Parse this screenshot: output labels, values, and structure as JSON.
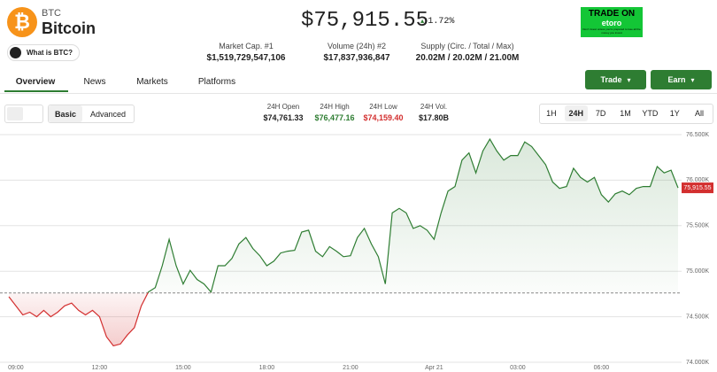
{
  "header": {
    "symbol": "BTC",
    "name": "Bitcoin",
    "what_is": "What is BTC?",
    "price": "$75,915.55",
    "change": "1.72%"
  },
  "stats": [
    {
      "label": "Market Cap. #1",
      "value": "$1,519,729,547,106"
    },
    {
      "label": "Volume (24h) #2",
      "value": "$17,837,936,847"
    },
    {
      "label": "Supply (Circ. / Total / Max)",
      "value": "20.02M / 20.02M / 21.00M"
    }
  ],
  "ad": {
    "title": "TRADE ON",
    "brand": "etoro",
    "disclaimer": "Don't invest unless you're prepared to lose all the money you invest"
  },
  "tabs": [
    "Overview",
    "News",
    "Markets",
    "Platforms"
  ],
  "buttons": [
    "Trade",
    "Earn"
  ],
  "modes": [
    "Basic",
    "Advanced"
  ],
  "day_stats": [
    {
      "label": "24H Open",
      "value": "$74,761.33"
    },
    {
      "label": "24H High",
      "value": "$76,477.16"
    },
    {
      "label": "24H Low",
      "value": "$74,159.40"
    },
    {
      "label": "24H Vol.",
      "value": "$17.80B"
    }
  ],
  "ranges": [
    "1H",
    "24H",
    "7D",
    "1M",
    "YTD",
    "1Y",
    "All"
  ],
  "chart_data": {
    "type": "line",
    "categories": [
      null,
      "09:00",
      null,
      null,
      null,
      null,
      null,
      null,
      null,
      null,
      null,
      null,
      null,
      "12:00",
      null,
      null,
      null,
      null,
      null,
      null,
      null,
      null,
      null,
      null,
      null,
      "15:00",
      null,
      null,
      null,
      null,
      null,
      null,
      null,
      null,
      null,
      null,
      null,
      "18:00",
      null,
      null,
      null,
      null,
      null,
      null,
      null,
      null,
      null,
      null,
      null,
      "21:00",
      null,
      null,
      null,
      null,
      null,
      null,
      null,
      null,
      null,
      null,
      null,
      "Apr 21",
      null,
      null,
      null,
      null,
      null,
      null,
      null,
      null,
      null,
      null,
      null,
      "03:00",
      null,
      null,
      null,
      null,
      null,
      null,
      null,
      null,
      null,
      null,
      null,
      "06:00",
      null,
      null,
      null,
      null,
      null,
      null,
      null,
      null,
      null,
      null,
      null
    ],
    "values": [
      74720,
      74620,
      74520,
      74550,
      74500,
      74570,
      74500,
      74550,
      74620,
      74650,
      74570,
      74520,
      74570,
      74500,
      74280,
      74180,
      74200,
      74300,
      74380,
      74620,
      74770,
      74820,
      75060,
      75350,
      75060,
      74860,
      75010,
      74910,
      74860,
      74770,
      75060,
      75060,
      75140,
      75300,
      75370,
      75250,
      75170,
      75060,
      75110,
      75200,
      75220,
      75230,
      75430,
      75450,
      75220,
      75160,
      75270,
      75220,
      75160,
      75170,
      75370,
      75470,
      75300,
      75160,
      74860,
      75640,
      75690,
      75640,
      75470,
      75500,
      75450,
      75350,
      75640,
      75880,
      75930,
      76220,
      76300,
      76080,
      76320,
      76450,
      76320,
      76220,
      76270,
      76270,
      76420,
      76370,
      76270,
      76170,
      75980,
      75910,
      75930,
      76130,
      76030,
      75980,
      76030,
      75840,
      75760,
      75850,
      75880,
      75840,
      75910,
      75930,
      75930,
      76150,
      76080,
      76110,
      75915.55
    ],
    "baseline": 74761.33,
    "last": {
      "value": 75915.55,
      "label": "75,915.55"
    },
    "up_color": "#2e7d32",
    "down_color": "#d32f2f",
    "ylim": [
      74000,
      76500
    ],
    "yticks": [
      {
        "value": 74000,
        "label": "74.000K"
      },
      {
        "value": 74500,
        "label": "74.500K"
      },
      {
        "value": 75000,
        "label": "75.000K"
      },
      {
        "value": 75500,
        "label": "75.500K"
      },
      {
        "value": 76000,
        "label": "76.000K"
      },
      {
        "value": 76500,
        "label": "76.500K"
      }
    ],
    "grid": true
  }
}
